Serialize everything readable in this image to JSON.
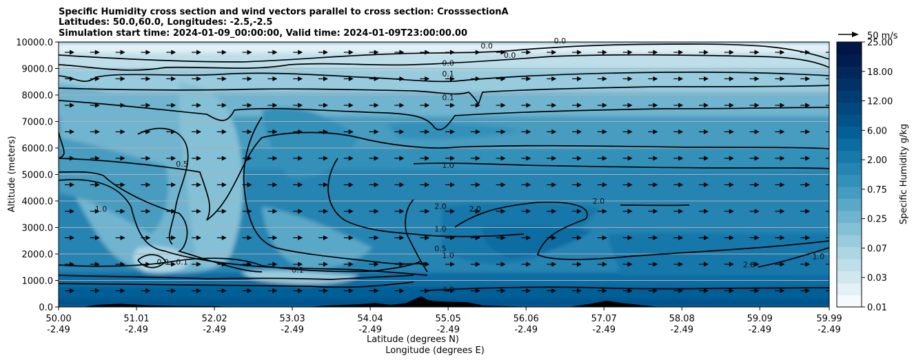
{
  "chart_data": {
    "type": "contourf",
    "title_lines": [
      "Specific Humidity cross section and wind vectors parallel to cross section: CrosssectionA",
      "Latitudes: 50.0,60.0, Longitudes: -2.5,-2.5",
      "Simulation start time: 2024-01-09_00:00:00, Valid time: 2024-01-09T23:00:00.00"
    ],
    "xlabel_lat": "Latitude (degrees N)",
    "xlabel_lon": "Longitude (degrees E)",
    "ylabel": "Altitude (meters)",
    "xlim": [
      50.0,
      59.99
    ],
    "ylim": [
      0,
      10000
    ],
    "xticks": [
      {
        "value": 50.0,
        "lat": "50.00",
        "lon": "-2.49"
      },
      {
        "value": 51.01,
        "lat": "51.01",
        "lon": "-2.49"
      },
      {
        "value": 52.02,
        "lat": "52.02",
        "lon": "-2.49"
      },
      {
        "value": 53.03,
        "lat": "53.03",
        "lon": "-2.49"
      },
      {
        "value": 54.04,
        "lat": "54.04",
        "lon": "-2.49"
      },
      {
        "value": 55.05,
        "lat": "55.05",
        "lon": "-2.49"
      },
      {
        "value": 56.06,
        "lat": "56.06",
        "lon": "-2.49"
      },
      {
        "value": 57.07,
        "lat": "57.07",
        "lon": "-2.49"
      },
      {
        "value": 58.08,
        "lat": "58.08",
        "lon": "-2.49"
      },
      {
        "value": 59.09,
        "lat": "59.09",
        "lon": "-2.49"
      },
      {
        "value": 59.99,
        "lat": "59.99",
        "lon": "-2.49"
      }
    ],
    "yticks": [
      {
        "value": 0,
        "label": "0.0"
      },
      {
        "value": 1000,
        "label": "1000.0"
      },
      {
        "value": 2000,
        "label": "2000.0"
      },
      {
        "value": 3000,
        "label": "3000.0"
      },
      {
        "value": 4000,
        "label": "4000.0"
      },
      {
        "value": 5000,
        "label": "5000.0"
      },
      {
        "value": 6000,
        "label": "6000.0"
      },
      {
        "value": 7000,
        "label": "7000.0"
      },
      {
        "value": 8000,
        "label": "8000.0"
      },
      {
        "value": 9000,
        "label": "9000.0"
      },
      {
        "value": 10000,
        "label": "10000.0"
      }
    ],
    "grid": "horizontal",
    "colorbar": {
      "label": "Specific Humidity g/kg",
      "levels": [
        0.01,
        0.02,
        0.03,
        0.05,
        0.07,
        0.1,
        0.15,
        0.25,
        0.35,
        0.5,
        0.75,
        1.0,
        1.5,
        2.0,
        3.0,
        4.0,
        6.0,
        8.0,
        12.0,
        15.0,
        18.0,
        22.0,
        25.0
      ],
      "tick_labels": [
        "0.01",
        "0.03",
        "0.07",
        "0.25",
        "0.75",
        "2.00",
        "6.00",
        "12.00",
        "18.00",
        "25.00"
      ],
      "colors": [
        "#f5fafc",
        "#e3f0f5",
        "#d0e7ef",
        "#bedfea",
        "#acd6e4",
        "#98cbdd",
        "#84c0d6",
        "#6fb4cf",
        "#5aa8c8",
        "#469cc0",
        "#3390b9",
        "#2584b2",
        "#1778aa",
        "#0b6ca2",
        "#055f97",
        "#03538a",
        "#03477e",
        "#023c72",
        "#023166",
        "#01275b",
        "#011d50",
        "#011546"
      ]
    },
    "quiver_key": {
      "label": "50 m/s",
      "speed": 50
    },
    "wind": {
      "direction": "parallel to cross section (northward)",
      "approx_speed_ms": 14
    },
    "contour_levels": [
      0.0,
      0.1,
      0.5,
      1.0,
      2.0,
      4.0
    ],
    "contour_labels": [
      {
        "text": "0.0",
        "lat": 55.55,
        "alt": 9750
      },
      {
        "text": "0.0",
        "lat": 55.85,
        "alt": 9400
      },
      {
        "text": "0.0",
        "lat": 55.05,
        "alt": 9100
      },
      {
        "text": "0.1",
        "lat": 55.05,
        "alt": 8700
      },
      {
        "text": "0.1",
        "lat": 55.05,
        "alt": 7800
      },
      {
        "text": "0.0",
        "lat": 56.5,
        "alt": 9950
      },
      {
        "text": "0.5",
        "lat": 51.6,
        "alt": 5300
      },
      {
        "text": "1.0",
        "lat": 50.55,
        "alt": 3600
      },
      {
        "text": "1.0",
        "lat": 55.05,
        "alt": 5250
      },
      {
        "text": "2.0",
        "lat": 54.95,
        "alt": 3700
      },
      {
        "text": "2.0",
        "lat": 55.4,
        "alt": 3600
      },
      {
        "text": "1.0",
        "lat": 54.95,
        "alt": 2850
      },
      {
        "text": "0.5",
        "lat": 54.95,
        "alt": 2100
      },
      {
        "text": "1.0",
        "lat": 55.05,
        "alt": 1850
      },
      {
        "text": "0.1",
        "lat": 51.6,
        "alt": 1600
      },
      {
        "text": "0.0",
        "lat": 51.35,
        "alt": 1600
      },
      {
        "text": "0.1",
        "lat": 53.1,
        "alt": 1300
      },
      {
        "text": "4.0",
        "lat": 55.05,
        "alt": 560
      },
      {
        "text": "2.0",
        "lat": 57.0,
        "alt": 3900
      },
      {
        "text": "2.0",
        "lat": 58.95,
        "alt": 1500
      },
      {
        "text": "1.0",
        "lat": 59.85,
        "alt": 1800
      }
    ],
    "terrain": [
      [
        50.0,
        0
      ],
      [
        50.3,
        0
      ],
      [
        50.5,
        80
      ],
      [
        50.8,
        120
      ],
      [
        51.2,
        60
      ],
      [
        51.6,
        40
      ],
      [
        52.0,
        30
      ],
      [
        52.3,
        0
      ],
      [
        53.2,
        0
      ],
      [
        53.5,
        60
      ],
      [
        53.9,
        100
      ],
      [
        54.1,
        150
      ],
      [
        54.3,
        80
      ],
      [
        54.5,
        140
      ],
      [
        54.7,
        400
      ],
      [
        54.8,
        250
      ],
      [
        55.0,
        200
      ],
      [
        55.3,
        180
      ],
      [
        55.5,
        60
      ],
      [
        55.8,
        30
      ],
      [
        56.2,
        0
      ],
      [
        56.6,
        0
      ],
      [
        56.9,
        120
      ],
      [
        57.1,
        240
      ],
      [
        57.3,
        150
      ],
      [
        57.6,
        60
      ],
      [
        57.8,
        0
      ],
      [
        59.99,
        0
      ]
    ]
  }
}
